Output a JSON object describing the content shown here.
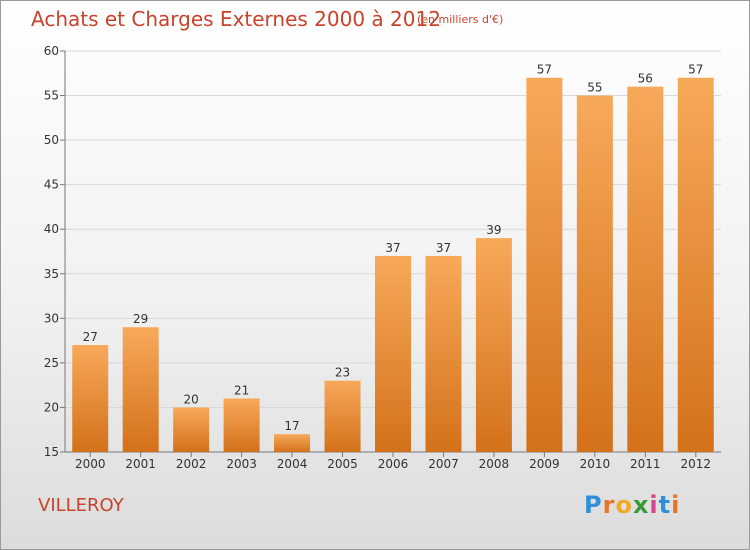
{
  "header": {
    "title": "Achats et Charges Externes 2000 à 2012",
    "unit": "(en milliers d'€)"
  },
  "footer": {
    "place": "VILLEROY",
    "logo_letters": [
      "P",
      "r",
      "o",
      "x",
      "i",
      "t",
      "i"
    ],
    "logo_colors": [
      "#2f8fd8",
      "#e8742a",
      "#f0a92a",
      "#3a9a3a",
      "#d24a8a",
      "#2f8fd8",
      "#e8742a"
    ]
  },
  "chart_data": {
    "type": "bar",
    "categories": [
      "2000",
      "2001",
      "2002",
      "2003",
      "2004",
      "2005",
      "2006",
      "2007",
      "2008",
      "2009",
      "2010",
      "2011",
      "2012"
    ],
    "values": [
      27,
      29,
      20,
      21,
      17,
      23,
      37,
      37,
      39,
      57,
      55,
      56,
      57
    ],
    "ylim": [
      15,
      60
    ],
    "yticks": [
      15,
      20,
      25,
      30,
      35,
      40,
      45,
      50,
      55,
      60
    ],
    "grid": true,
    "bar_color_top": "#f7a95a",
    "bar_color_bottom": "#d4711a"
  }
}
